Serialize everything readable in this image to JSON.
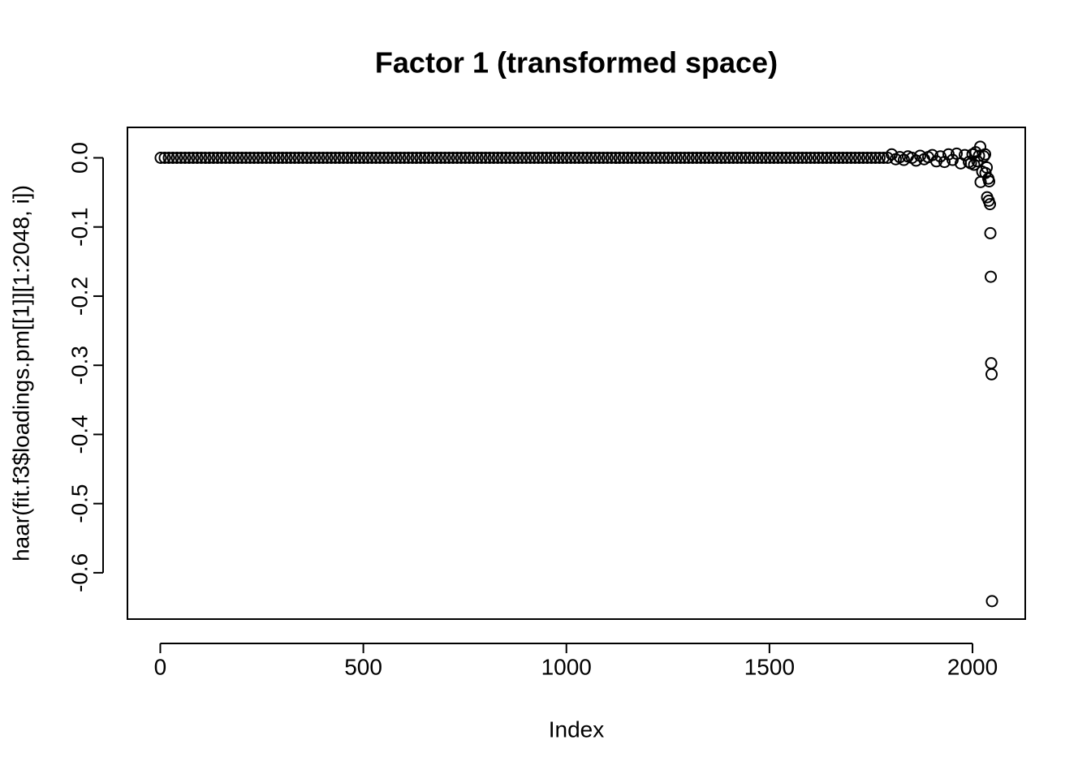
{
  "chart_data": {
    "type": "scatter",
    "title": "Factor 1 (transformed space)",
    "xlabel": "Index",
    "ylabel": "haar(fit.f3$loadings.pm[[1]][1:2048, i])",
    "color": "#000000",
    "xlim": [
      -80.88,
      2129.88
    ],
    "ylim": [
      -0.667,
      0.044
    ],
    "xticks": [
      0,
      500,
      1000,
      1500,
      2000
    ],
    "yticks": [
      -0.6,
      -0.5,
      -0.4,
      -0.3,
      -0.2,
      -0.1,
      {
        "value": 0,
        "label": "0.0"
      }
    ],
    "x": [
      1,
      11,
      21,
      31,
      41,
      51,
      61,
      71,
      81,
      91,
      101,
      111,
      121,
      131,
      141,
      151,
      161,
      171,
      181,
      191,
      201,
      211,
      221,
      231,
      241,
      251,
      261,
      271,
      281,
      291,
      301,
      311,
      321,
      331,
      341,
      351,
      361,
      371,
      381,
      391,
      401,
      411,
      421,
      431,
      441,
      451,
      461,
      471,
      481,
      491,
      501,
      511,
      521,
      531,
      541,
      551,
      561,
      571,
      581,
      591,
      601,
      611,
      621,
      631,
      641,
      651,
      661,
      671,
      681,
      691,
      701,
      711,
      721,
      731,
      741,
      751,
      761,
      771,
      781,
      791,
      801,
      811,
      821,
      831,
      841,
      851,
      861,
      871,
      881,
      891,
      901,
      911,
      921,
      931,
      941,
      951,
      961,
      971,
      981,
      991,
      1001,
      1011,
      1021,
      1031,
      1041,
      1051,
      1061,
      1071,
      1081,
      1091,
      1101,
      1111,
      1121,
      1131,
      1141,
      1151,
      1161,
      1171,
      1181,
      1191,
      1201,
      1211,
      1221,
      1231,
      1241,
      1251,
      1261,
      1271,
      1281,
      1291,
      1301,
      1311,
      1321,
      1331,
      1341,
      1351,
      1361,
      1371,
      1381,
      1391,
      1401,
      1411,
      1421,
      1431,
      1441,
      1451,
      1461,
      1471,
      1481,
      1491,
      1501,
      1511,
      1521,
      1531,
      1541,
      1551,
      1561,
      1571,
      1581,
      1591,
      1601,
      1611,
      1621,
      1631,
      1641,
      1651,
      1661,
      1671,
      1681,
      1691,
      1701,
      1711,
      1721,
      1731,
      1741,
      1751,
      1761,
      1771,
      1781,
      1791,
      1801,
      1811,
      1821,
      1831,
      1841,
      1851,
      1861,
      1871,
      1881,
      1891,
      1901,
      1911,
      1921,
      1931,
      1941,
      1951,
      1961,
      1971,
      1981,
      1991,
      1996,
      2000,
      2004,
      2008,
      2012,
      2016,
      2019,
      2020,
      2024,
      2028,
      2031,
      2032,
      2035,
      2036,
      2039,
      2040,
      2041,
      2043,
      2044,
      2045,
      2046,
      2047,
      2048
    ],
    "y": [
      0,
      0,
      0,
      0,
      0,
      0,
      0,
      0,
      0,
      0,
      0,
      0,
      0,
      0,
      0,
      0,
      0,
      0,
      0,
      0,
      0,
      0,
      0,
      0,
      0,
      0,
      0,
      0,
      0,
      0,
      0,
      0,
      0,
      0,
      0,
      0,
      0,
      0,
      0,
      0,
      0,
      0,
      0,
      0,
      0,
      0,
      0,
      0,
      0,
      0,
      0,
      0,
      0,
      0,
      0,
      0,
      0,
      0,
      0,
      0,
      0,
      0,
      0,
      0,
      0,
      0,
      0,
      0,
      0,
      0,
      0,
      0,
      0,
      0,
      0,
      0,
      0,
      0,
      0,
      0,
      0,
      0,
      0,
      0,
      0,
      0,
      0,
      0,
      0,
      0,
      0,
      0,
      0,
      0,
      0,
      0,
      0,
      0,
      0,
      0,
      0,
      0,
      0,
      0,
      0,
      0,
      0,
      0,
      0,
      0,
      0,
      0,
      0,
      0,
      0,
      0,
      0,
      0,
      0,
      0,
      0,
      0,
      0,
      0,
      0,
      0,
      0,
      0,
      0,
      0,
      0,
      0,
      0,
      0,
      0,
      0,
      0,
      0,
      0,
      0,
      0,
      0,
      0,
      0,
      0,
      0,
      0,
      0,
      0,
      0,
      0,
      0,
      0,
      0,
      0,
      0,
      0,
      0,
      0,
      0,
      0,
      0,
      0,
      0,
      0,
      0,
      0,
      0,
      0,
      0,
      0,
      0,
      0,
      0,
      0,
      0,
      0,
      0,
      0,
      0,
      0.005,
      -0.002,
      0.001,
      -0.003,
      0.002,
      0,
      -0.004,
      0.003,
      -0.002,
      0.001,
      0.004,
      -0.005,
      0.002,
      -0.006,
      0.005,
      -0.003,
      0.006,
      -0.008,
      0.004,
      -0.006,
      -0.008,
      0.005,
      -0.01,
      0.008,
      -0.005,
      0.003,
      0.016,
      -0.035,
      -0.02,
      0.002,
      0.005,
      -0.022,
      -0.014,
      -0.057,
      -0.03,
      -0.062,
      -0.034,
      -0.067,
      -0.109,
      -0.172,
      -0.297,
      -0.313,
      -0.641
    ]
  }
}
